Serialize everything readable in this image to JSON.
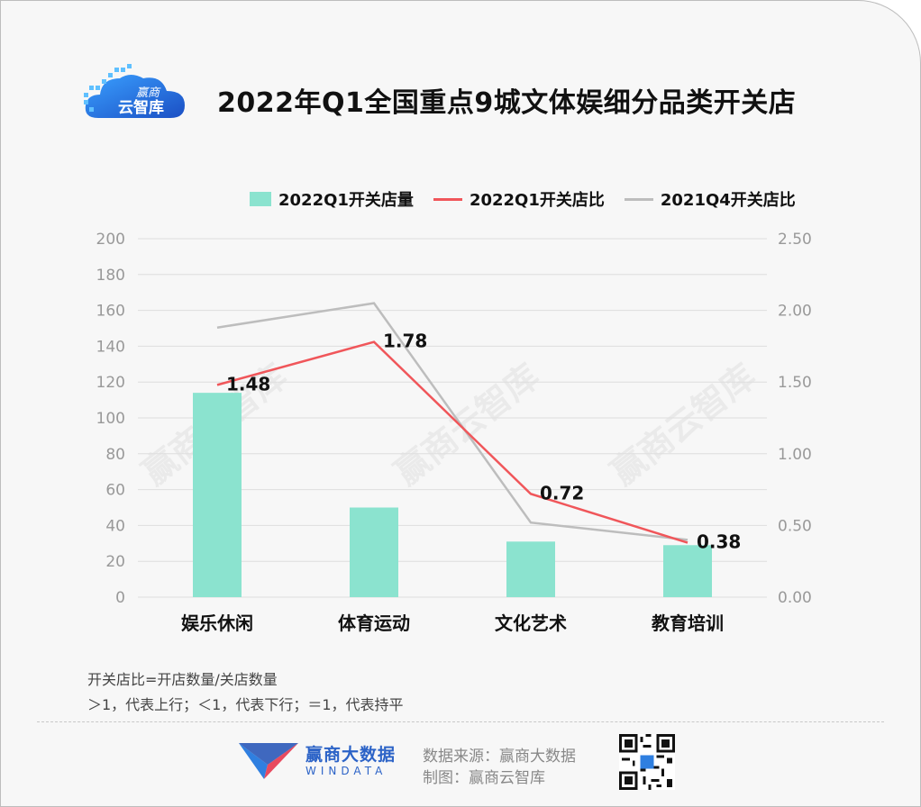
{
  "brand": {
    "logo_text_top": "赢商",
    "logo_text_bottom": "云智库"
  },
  "title": "2022年Q1全国重点9城文体娱细分品类开关店",
  "legend": {
    "bar": "2022Q1开关店量",
    "line1": "2022Q1开关店比",
    "line2": "2021Q4开关店比"
  },
  "colors": {
    "bar": "#8be3cf",
    "line1": "#f0565a",
    "line2": "#bdbdbd"
  },
  "watermark": "赢商云智库",
  "chart_data": {
    "type": "bar",
    "categories": [
      "娱乐休闲",
      "体育运动",
      "文化艺术",
      "教育培训"
    ],
    "series": [
      {
        "name": "2022Q1开关店量",
        "type": "bar",
        "axis": "left",
        "values": [
          114,
          50,
          31,
          29
        ]
      },
      {
        "name": "2022Q1开关店比",
        "type": "line",
        "axis": "right",
        "values": [
          1.48,
          1.78,
          0.72,
          0.38
        ],
        "labels": [
          "1.48",
          "1.78",
          "0.72",
          "0.38"
        ]
      },
      {
        "name": "2021Q4开关店比",
        "type": "line",
        "axis": "right",
        "values": [
          1.88,
          2.05,
          0.52,
          0.4
        ]
      }
    ],
    "left_axis": {
      "ylim": [
        0,
        200
      ],
      "ticks": [
        "0",
        "20",
        "40",
        "60",
        "80",
        "100",
        "120",
        "140",
        "160",
        "180",
        "200"
      ]
    },
    "right_axis": {
      "ylim": [
        0,
        2.5
      ],
      "ticks": [
        "0.00",
        "0.50",
        "1.00",
        "1.50",
        "2.00",
        "2.50"
      ]
    },
    "grid": true,
    "legend_position": "top-right"
  },
  "notes": {
    "line1": "开关店比=开店数量/关店数量",
    "line2": "＞1，代表上行；＜1，代表下行；＝1，代表持平"
  },
  "footer": {
    "brand_cn": "赢商大数据",
    "brand_en": "WINDATA",
    "source": "数据来源：赢商大数据",
    "made_by": "制图：赢商云智库"
  }
}
